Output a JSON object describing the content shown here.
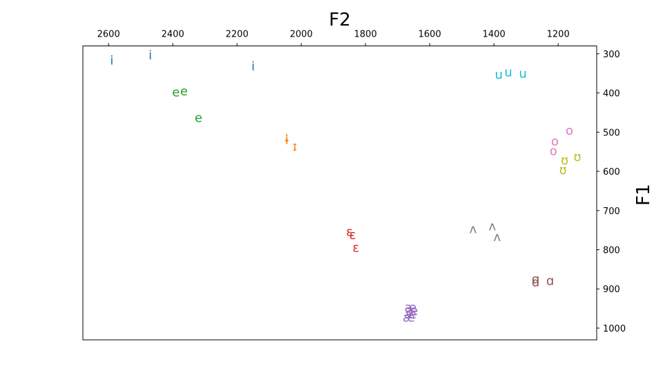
{
  "chart_data": {
    "type": "scatter",
    "title": "",
    "xlabel": "F2",
    "ylabel": "F1",
    "x_axis_position": "top",
    "y_axis_position": "right",
    "x_inverted": true,
    "y_inverted": true,
    "xlim": [
      2680,
      1080
    ],
    "ylim": [
      1030,
      280
    ],
    "x_ticks": [
      2600,
      2400,
      2200,
      2000,
      1800,
      1600,
      1400,
      1200
    ],
    "y_ticks": [
      300,
      400,
      500,
      600,
      700,
      800,
      900,
      1000
    ],
    "grid": false,
    "legend": "none",
    "series": [
      {
        "label": "i",
        "color": "#1f77b4",
        "points": [
          {
            "x": 2590,
            "y": 318
          },
          {
            "x": 2470,
            "y": 305
          },
          {
            "x": 2150,
            "y": 333
          }
        ]
      },
      {
        "label": "e",
        "color": "#2ca02c",
        "points": [
          {
            "x": 2390,
            "y": 399
          },
          {
            "x": 2365,
            "y": 396
          },
          {
            "x": 2320,
            "y": 464
          }
        ]
      },
      {
        "label": "ɨ",
        "color": "#ff7f0e",
        "points": [
          {
            "x": 2045,
            "y": 519
          },
          {
            "x": 2045,
            "y": 521
          }
        ]
      },
      {
        "label": "ɪ",
        "color": "#ff7f0e",
        "points": [
          {
            "x": 2020,
            "y": 537
          }
        ]
      },
      {
        "label": "ɛ",
        "color": "#d62728",
        "points": [
          {
            "x": 1850,
            "y": 755
          },
          {
            "x": 1840,
            "y": 763
          },
          {
            "x": 1830,
            "y": 796
          }
        ]
      },
      {
        "label": "æ",
        "color": "#9467bd",
        "points": [
          {
            "x": 1660,
            "y": 948
          },
          {
            "x": 1655,
            "y": 957
          },
          {
            "x": 1660,
            "y": 966
          },
          {
            "x": 1665,
            "y": 974
          }
        ]
      },
      {
        "label": "ʌ",
        "color": "#7f7f7f",
        "points": [
          {
            "x": 1465,
            "y": 748
          },
          {
            "x": 1405,
            "y": 741
          },
          {
            "x": 1390,
            "y": 768
          }
        ]
      },
      {
        "label": "ɑ",
        "color": "#8c564b",
        "points": [
          {
            "x": 1270,
            "y": 876
          },
          {
            "x": 1270,
            "y": 884
          },
          {
            "x": 1225,
            "y": 880
          }
        ]
      },
      {
        "label": "u",
        "color": "#17becf",
        "points": [
          {
            "x": 1385,
            "y": 354
          },
          {
            "x": 1355,
            "y": 348
          },
          {
            "x": 1310,
            "y": 351
          }
        ]
      },
      {
        "label": "o",
        "color": "#e377c2",
        "points": [
          {
            "x": 1165,
            "y": 497
          },
          {
            "x": 1210,
            "y": 524
          },
          {
            "x": 1215,
            "y": 549
          }
        ]
      },
      {
        "label": "ʊ",
        "color": "#bcbd22",
        "points": [
          {
            "x": 1140,
            "y": 564
          },
          {
            "x": 1180,
            "y": 573
          },
          {
            "x": 1185,
            "y": 597
          }
        ]
      }
    ]
  }
}
